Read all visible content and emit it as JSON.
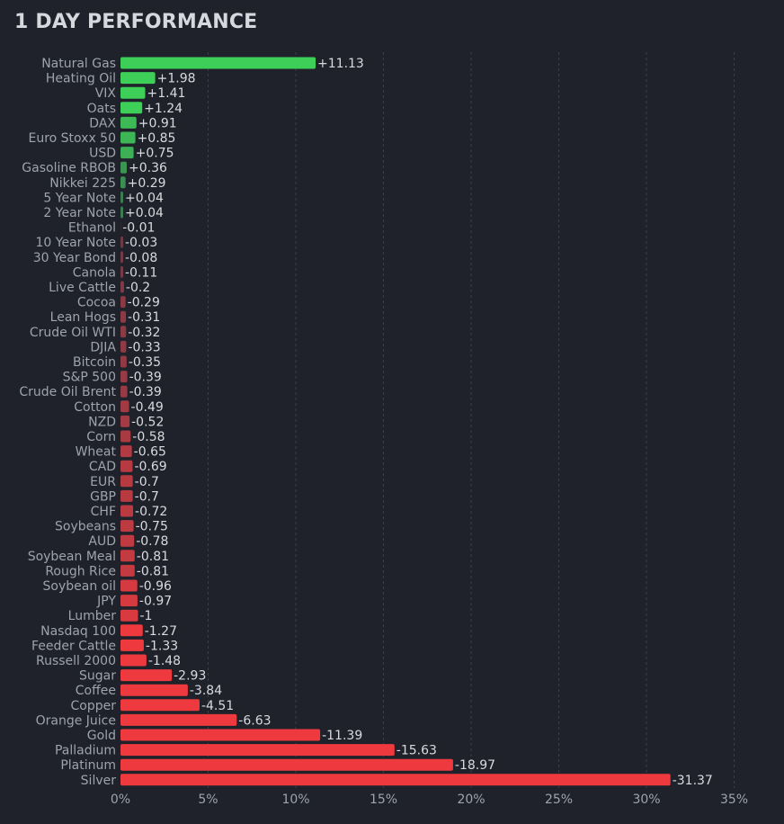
{
  "title": "1 DAY PERFORMANCE",
  "colors": {
    "background": "#1f222a",
    "grid": "#3a3e48",
    "positive_strong": "#3ecf58",
    "positive_weak": "#3a7a50",
    "negative_weak": "#6b3a46",
    "negative_strong": "#ee3a3e"
  },
  "chart_data": {
    "type": "bar",
    "orientation": "horizontal",
    "title": "1 DAY PERFORMANCE",
    "xlabel": "",
    "ylabel": "",
    "xlim": [
      0,
      35
    ],
    "xticks": [
      0,
      5,
      10,
      15,
      20,
      25,
      30,
      35
    ],
    "xtick_labels": [
      "0%",
      "5%",
      "10%",
      "15%",
      "20%",
      "25%",
      "30%",
      "35%"
    ],
    "grid": "vertical dashed",
    "bar_length": "absolute value",
    "categories": [
      "Natural Gas",
      "Heating Oil",
      "VIX",
      "Oats",
      "DAX",
      "Euro Stoxx 50",
      "USD",
      "Gasoline RBOB",
      "Nikkei 225",
      "5 Year Note",
      "2 Year Note",
      "Ethanol",
      "10 Year Note",
      "30 Year Bond",
      "Canola",
      "Live Cattle",
      "Cocoa",
      "Lean Hogs",
      "Crude Oil WTI",
      "DJIA",
      "Bitcoin",
      "S&P 500",
      "Crude Oil Brent",
      "Cotton",
      "NZD",
      "Corn",
      "Wheat",
      "CAD",
      "EUR",
      "GBP",
      "CHF",
      "Soybeans",
      "AUD",
      "Soybean Meal",
      "Rough Rice",
      "Soybean oil",
      "JPY",
      "Lumber",
      "Nasdaq 100",
      "Feeder Cattle",
      "Russell 2000",
      "Sugar",
      "Coffee",
      "Copper",
      "Orange Juice",
      "Gold",
      "Palladium",
      "Platinum",
      "Silver"
    ],
    "values": [
      11.13,
      1.98,
      1.41,
      1.24,
      0.91,
      0.85,
      0.75,
      0.36,
      0.29,
      0.04,
      0.04,
      -0.01,
      -0.03,
      -0.08,
      -0.11,
      -0.2,
      -0.29,
      -0.31,
      -0.32,
      -0.33,
      -0.35,
      -0.39,
      -0.39,
      -0.49,
      -0.52,
      -0.58,
      -0.65,
      -0.69,
      -0.7,
      -0.7,
      -0.72,
      -0.75,
      -0.78,
      -0.81,
      -0.81,
      -0.96,
      -0.97,
      -1,
      -1.27,
      -1.33,
      -1.48,
      -2.93,
      -3.84,
      -4.51,
      -6.63,
      -11.39,
      -15.63,
      -18.97,
      -31.37
    ],
    "value_labels": [
      "+11.13",
      "+1.98",
      "+1.41",
      "+1.24",
      "+0.91",
      "+0.85",
      "+0.75",
      "+0.36",
      "+0.29",
      "+0.04",
      "+0.04",
      "-0.01",
      "-0.03",
      "-0.08",
      "-0.11",
      "-0.2",
      "-0.29",
      "-0.31",
      "-0.32",
      "-0.33",
      "-0.35",
      "-0.39",
      "-0.39",
      "-0.49",
      "-0.52",
      "-0.58",
      "-0.65",
      "-0.69",
      "-0.7",
      "-0.7",
      "-0.72",
      "-0.75",
      "-0.78",
      "-0.81",
      "-0.81",
      "-0.96",
      "-0.97",
      "-1",
      "-1.27",
      "-1.33",
      "-1.48",
      "-2.93",
      "-3.84",
      "-4.51",
      "-6.63",
      "-11.39",
      "-15.63",
      "-18.97",
      "-31.37"
    ]
  }
}
